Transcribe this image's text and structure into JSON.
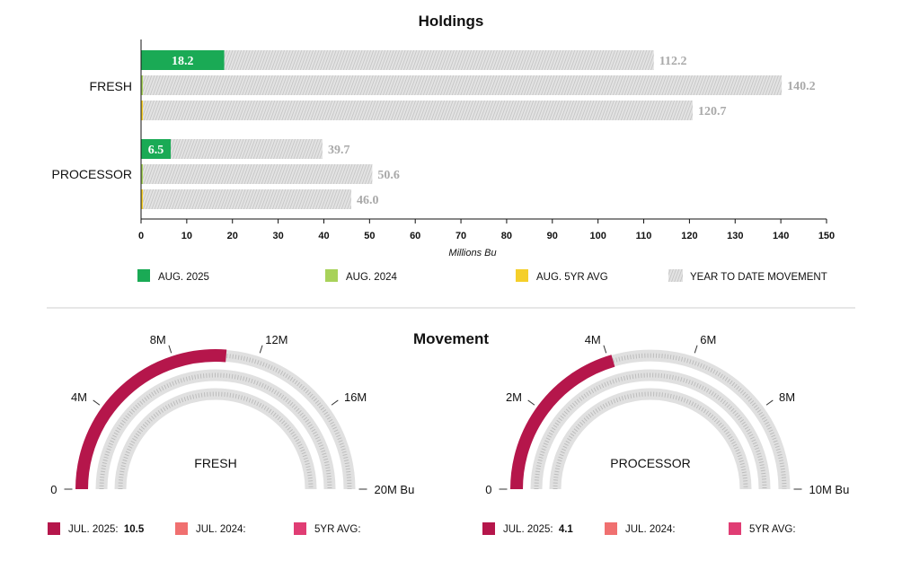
{
  "holdings": {
    "title": "Holdings",
    "colors": {
      "aug_2025": "#1aaa55",
      "aug_2024": "#a8d25a",
      "aug_5yr_avg": "#f5cf2a",
      "ytd_movement": "#e3e3e3",
      "ytd_hatch": "#c4c4c4",
      "value_label": "#a9a9a9"
    },
    "legend": [
      {
        "key": "aug_2025",
        "label": "AUG. 2025"
      },
      {
        "key": "aug_2024",
        "label": "AUG. 2024"
      },
      {
        "key": "aug_5yr_avg",
        "label": "AUG. 5YR AVG"
      },
      {
        "key": "ytd_movement",
        "label": "YEAR TO DATE MOVEMENT"
      }
    ]
  },
  "movement": {
    "title": "Movement",
    "colors": {
      "jul_2025": "#b5164b",
      "jul_2024": "#f07070",
      "five_yr_avg": "#e03d74",
      "track": "#e0e0e0",
      "track_hatch": "#bcbcbc"
    },
    "gauges": [
      {
        "center_label": "FRESH",
        "scale_labels": [
          "0",
          "4M",
          "8M",
          "12M",
          "16M",
          "20M Bu"
        ],
        "legend": [
          {
            "key": "jul_2025",
            "label": "JUL. 2025:",
            "value": "10.5"
          },
          {
            "key": "jul_2024",
            "label": "JUL. 2024:",
            "value": ""
          },
          {
            "key": "five_yr_avg",
            "label": "5YR AVG:",
            "value": ""
          }
        ]
      },
      {
        "center_label": "PROCESSOR",
        "scale_labels": [
          "0",
          "2M",
          "4M",
          "6M",
          "8M",
          "10M Bu"
        ],
        "legend": [
          {
            "key": "jul_2025",
            "label": "JUL. 2025:",
            "value": "4.1"
          },
          {
            "key": "jul_2024",
            "label": "JUL. 2024:",
            "value": ""
          },
          {
            "key": "five_yr_avg",
            "label": "5YR AVG:",
            "value": ""
          }
        ]
      }
    ]
  },
  "chart_data": [
    {
      "type": "bar",
      "orientation": "horizontal",
      "title": "Holdings",
      "xlabel": "Millions Bu",
      "ylabel": "",
      "xlim": [
        0,
        150
      ],
      "xticks": [
        0,
        10,
        20,
        30,
        40,
        50,
        60,
        70,
        80,
        90,
        100,
        110,
        120,
        130,
        140,
        150
      ],
      "categories": [
        "FRESH",
        "PROCESSOR"
      ],
      "series": [
        {
          "name": "AUG. 2025",
          "values": [
            18.2,
            6.5
          ],
          "ytd_movement": [
            112.2,
            39.7
          ]
        },
        {
          "name": "AUG. 2024",
          "values": [
            0.4,
            0.4
          ],
          "ytd_movement": [
            140.2,
            50.6
          ]
        },
        {
          "name": "AUG. 5YR AVG",
          "values": [
            0.4,
            0.4
          ],
          "ytd_movement": [
            120.7,
            46.0
          ]
        }
      ],
      "legend_position": "bottom",
      "grid": false
    },
    {
      "type": "gauge",
      "title": "Movement",
      "center_label": "FRESH",
      "unit": "M Bu",
      "range": [
        0,
        20
      ],
      "ticks": [
        0,
        4,
        8,
        12,
        16,
        20
      ],
      "series": [
        {
          "name": "JUL. 2025",
          "value": 10.5
        },
        {
          "name": "JUL. 2024",
          "value": null
        },
        {
          "name": "5YR AVG",
          "value": null
        }
      ]
    },
    {
      "type": "gauge",
      "title": "Movement",
      "center_label": "PROCESSOR",
      "unit": "M Bu",
      "range": [
        0,
        10
      ],
      "ticks": [
        0,
        2,
        4,
        6,
        8,
        10
      ],
      "series": [
        {
          "name": "JUL. 2025",
          "value": 4.1
        },
        {
          "name": "JUL. 2024",
          "value": null
        },
        {
          "name": "5YR AVG",
          "value": null
        }
      ]
    }
  ]
}
